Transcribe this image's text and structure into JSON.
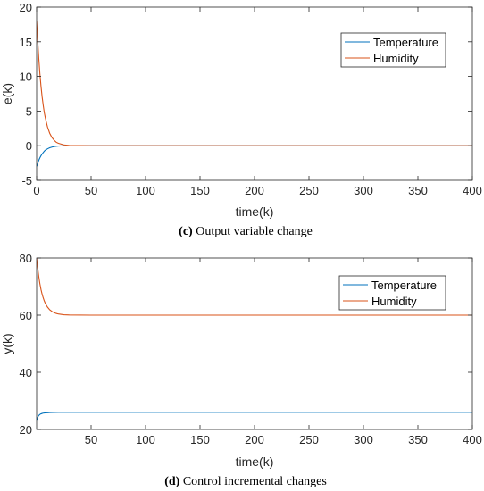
{
  "chart_data": [
    {
      "type": "line",
      "caption_letter": "(c)",
      "caption_text": " Output variable change",
      "xlabel": "time(k)",
      "ylabel": "e(k)",
      "xlim": [
        0,
        400
      ],
      "ylim": [
        -5,
        20
      ],
      "xticks": [
        0,
        50,
        100,
        150,
        200,
        250,
        300,
        350,
        400
      ],
      "yticks": [
        -5,
        0,
        5,
        10,
        15,
        20
      ],
      "grid": false,
      "legend_position": "top-right",
      "series": [
        {
          "name": "Temperature",
          "color": "#0072BD",
          "x": [
            0,
            1,
            2,
            3,
            4,
            5,
            6,
            7,
            8,
            10,
            12,
            14,
            16,
            18,
            20,
            25,
            30,
            50,
            100,
            200,
            300,
            400
          ],
          "y": [
            -3,
            -2.6,
            -2.1,
            -1.75,
            -1.45,
            -1.2,
            -1.0,
            -0.8,
            -0.65,
            -0.45,
            -0.3,
            -0.2,
            -0.13,
            -0.08,
            -0.05,
            -0.02,
            0,
            0,
            0,
            0,
            0,
            0
          ]
        },
        {
          "name": "Humidity",
          "color": "#D95319",
          "x": [
            0,
            1,
            2,
            3,
            4,
            5,
            6,
            7,
            8,
            10,
            12,
            14,
            16,
            18,
            20,
            25,
            30,
            50,
            100,
            200,
            300,
            400
          ],
          "y": [
            18,
            15.2,
            12.6,
            10.4,
            8.6,
            7.1,
            5.9,
            4.8,
            4.0,
            2.7,
            1.8,
            1.2,
            0.8,
            0.5,
            0.35,
            0.12,
            0.03,
            0,
            0,
            0,
            0,
            0
          ]
        }
      ]
    },
    {
      "type": "line",
      "caption_letter": "(d)",
      "caption_text": " Control incremental changes",
      "xlabel": "time(k)",
      "ylabel": "y(k)",
      "xlim": [
        0,
        400
      ],
      "ylim": [
        20,
        80
      ],
      "xticks": [
        50,
        100,
        150,
        200,
        250,
        300,
        350,
        400
      ],
      "yticks": [
        20,
        40,
        60,
        80
      ],
      "grid": false,
      "legend_position": "top-right",
      "series": [
        {
          "name": "Temperature",
          "color": "#0072BD",
          "x": [
            0,
            1,
            2,
            3,
            4,
            5,
            6,
            8,
            10,
            12,
            15,
            20,
            30,
            50,
            100,
            200,
            300,
            400
          ],
          "y": [
            23,
            24.3,
            24.9,
            25.25,
            25.45,
            25.6,
            25.7,
            25.8,
            25.85,
            25.9,
            25.95,
            26,
            26,
            26,
            26,
            26,
            26,
            26
          ]
        },
        {
          "name": "Humidity",
          "color": "#D95319",
          "x": [
            0,
            1,
            2,
            3,
            4,
            5,
            6,
            7,
            8,
            10,
            12,
            14,
            16,
            18,
            20,
            25,
            30,
            50,
            100,
            200,
            300,
            400
          ],
          "y": [
            80,
            76.5,
            73.5,
            71,
            69,
            67.4,
            66.1,
            65.0,
            64.1,
            62.8,
            61.9,
            61.3,
            60.9,
            60.6,
            60.4,
            60.15,
            60.05,
            60,
            60,
            60,
            60,
            60
          ]
        }
      ]
    }
  ]
}
